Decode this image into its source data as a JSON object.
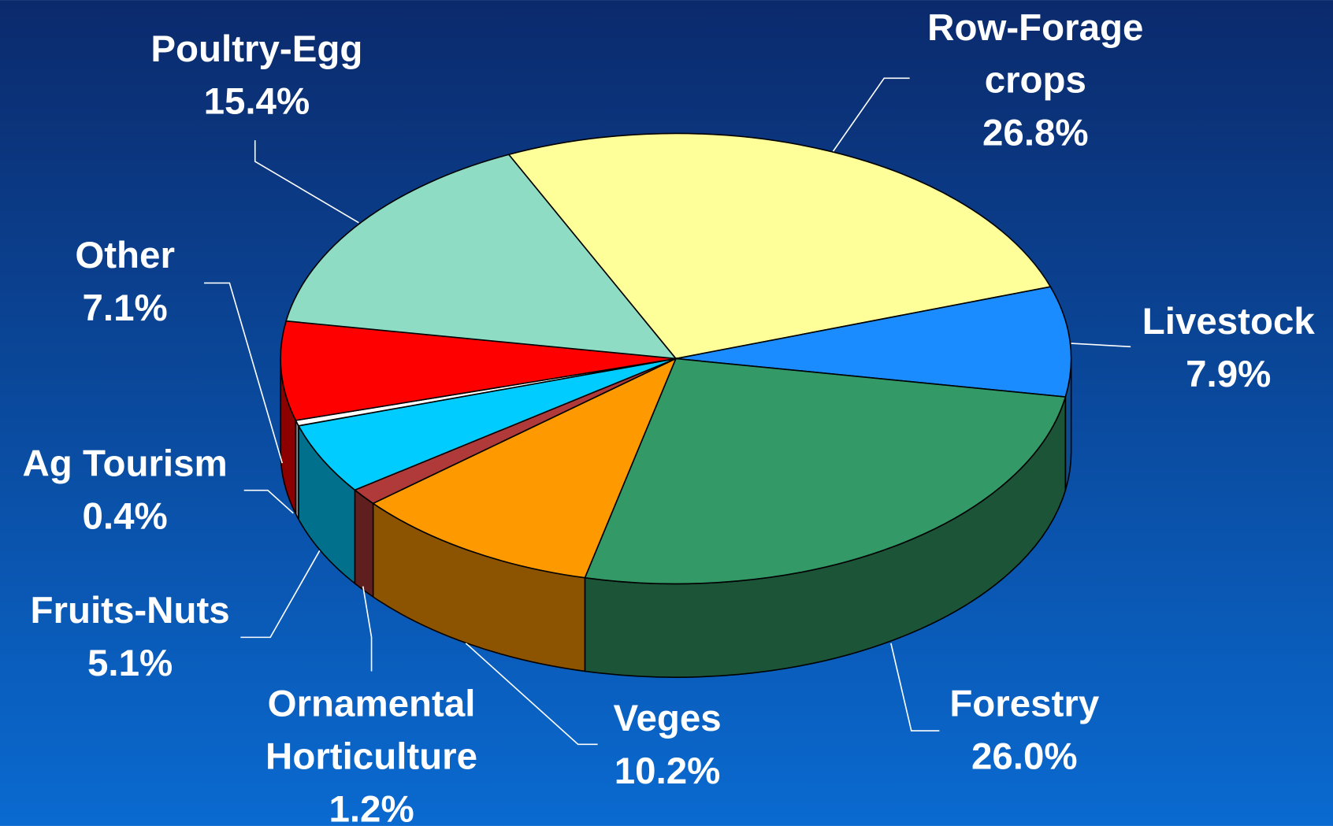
{
  "chart_data": {
    "type": "pie3d",
    "categories": [
      "Row-Forage\ncrops",
      "Livestock",
      "Forestry",
      "Veges",
      "Ornamental\nHorticulture",
      "Fruits-Nuts",
      "Ag Tourism",
      "Other",
      "Poultry-Egg"
    ],
    "values": [
      26.8,
      7.9,
      26.0,
      10.2,
      1.2,
      5.1,
      0.4,
      7.1,
      15.4
    ],
    "value_labels": [
      "26.8%",
      "7.9%",
      "26.0%",
      "10.2%",
      "1.2%",
      "5.1%",
      "0.4%",
      "7.1%",
      "15.4%"
    ],
    "colors": [
      "#ffff99",
      "#1a8cff",
      "#339966",
      "#ff9900",
      "#b03a3a",
      "#00ccff",
      "#ffffff",
      "#ff0000",
      "#8fdcc4"
    ]
  }
}
